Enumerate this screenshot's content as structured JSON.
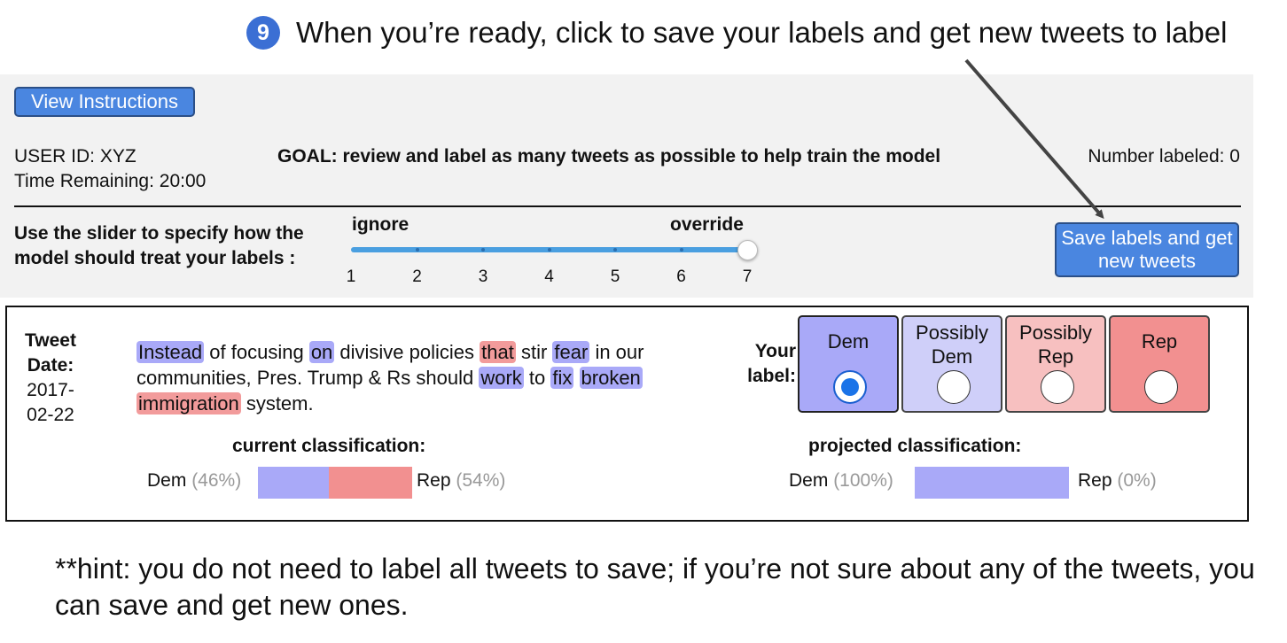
{
  "callout": {
    "step": "9",
    "text": "When you’re ready, click to save your labels and get new tweets to label"
  },
  "header": {
    "view_instructions_label": "View Instructions",
    "user_id": "USER ID: XYZ",
    "time_remaining": "Time Remaining: 20:00",
    "goal": "GOAL: review and label as many tweets as possible to help train the model",
    "number_labeled": "Number labeled: 0"
  },
  "slider": {
    "instruction": "Use the slider to specify how the model should treat your labels :",
    "min_label": "ignore",
    "max_label": "override",
    "ticks": [
      "1",
      "2",
      "3",
      "4",
      "5",
      "6",
      "7"
    ],
    "value": 7
  },
  "save_button_label": "Save labels and get new tweets",
  "tweet": {
    "date_label": "Tweet Date:",
    "date": "2017-02-22",
    "words": [
      {
        "t": "Instead",
        "hl": "dem"
      },
      {
        "t": " of focusing "
      },
      {
        "t": "on",
        "hl": "dem"
      },
      {
        "t": " divisive policies "
      },
      {
        "t": "that",
        "hl": "rep"
      },
      {
        "t": " stir "
      },
      {
        "t": "fear",
        "hl": "dem"
      },
      {
        "t": " in our communities, Pres. Trump & Rs should "
      },
      {
        "t": "work",
        "hl": "dem"
      },
      {
        "t": " to "
      },
      {
        "t": "fix",
        "hl": "dem"
      },
      {
        "t": " "
      },
      {
        "t": "broken",
        "hl": "dem"
      },
      {
        "t": " "
      },
      {
        "t": "immigration",
        "hl": "rep"
      },
      {
        "t": " system."
      }
    ]
  },
  "labeling": {
    "your_label": "Your label:",
    "options": [
      {
        "label": "Dem",
        "selected": true
      },
      {
        "label": "Possibly Dem",
        "selected": false
      },
      {
        "label": "Possibly Rep",
        "selected": false
      },
      {
        "label": "Rep",
        "selected": false
      }
    ]
  },
  "current_classification": {
    "title": "current classification:",
    "dem_label": "Dem",
    "dem_pct": "(46%)",
    "rep_label": "Rep",
    "rep_pct": "(54%)",
    "dem_value": 46,
    "rep_value": 54
  },
  "projected_classification": {
    "title": "projected classification:",
    "dem_label": "Dem",
    "dem_pct": "(100%)",
    "rep_label": "Rep",
    "rep_pct": "(0%)",
    "dem_value": 100,
    "rep_value": 0
  },
  "hint": "**hint: you do not need to label all tweets to save; if you’re not sure about any of the tweets, you can save and get new ones.",
  "colors": {
    "dem": "#a9a9f8",
    "rep": "#f29090",
    "button": "#4a86e0"
  }
}
